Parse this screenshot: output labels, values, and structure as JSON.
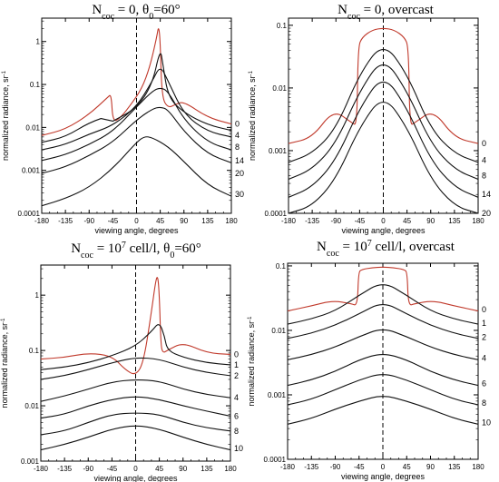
{
  "chart_data": [
    {
      "type": "line",
      "title_parts": [
        "N",
        "coc",
        " = 0, θ",
        "0",
        "=60°"
      ],
      "xlabel": "viewing angle, degrees",
      "ylabel": "normalized radiance, sr",
      "ylabel_sup": "-1",
      "x_ticks": [
        "-180",
        "-135",
        "-90",
        "-45",
        "0",
        "45",
        "90",
        "135",
        "180"
      ],
      "y_ticks": [
        "0.0001",
        "0.001",
        "0.01",
        "0.1",
        "1"
      ],
      "ylim": [
        0.0001,
        3.5
      ],
      "xlim": [
        -180,
        180
      ],
      "log_y": true,
      "series": [
        {
          "name": "0",
          "color": "#c0392b",
          "x": [
            -180,
            -135,
            -90,
            -55,
            -48,
            -45,
            -30,
            -10,
            10,
            25,
            38,
            42,
            45,
            48,
            60,
            75,
            90,
            135,
            180
          ],
          "y": [
            0.0065,
            0.009,
            0.02,
            0.05,
            0.06,
            0.013,
            0.017,
            0.035,
            0.08,
            0.25,
            1.2,
            2.4,
            1.0,
            0.05,
            0.028,
            0.035,
            0.04,
            0.017,
            0.012
          ]
        },
        {
          "name": "4",
          "color": "#111111",
          "x": [
            -180,
            -135,
            -90,
            -45,
            -45,
            0,
            30,
            45,
            50,
            60,
            90,
            135,
            180
          ],
          "y": [
            0.0045,
            0.006,
            0.013,
            0.02,
            0.014,
            0.028,
            0.1,
            0.7,
            0.3,
            0.05,
            0.022,
            0.0115,
            0.0085
          ]
        },
        {
          "name": "8",
          "color": "#111111",
          "x": [
            -180,
            -135,
            -90,
            -45,
            0,
            30,
            45,
            60,
            90,
            135,
            180
          ],
          "y": [
            0.003,
            0.004,
            0.007,
            0.011,
            0.03,
            0.12,
            0.28,
            0.12,
            0.02,
            0.008,
            0.006
          ]
        },
        {
          "name": "14",
          "color": "#111111",
          "x": [
            -180,
            -135,
            -90,
            -45,
            0,
            30,
            45,
            60,
            90,
            135,
            180
          ],
          "y": [
            0.0017,
            0.0023,
            0.004,
            0.008,
            0.03,
            0.07,
            0.085,
            0.07,
            0.015,
            0.0045,
            0.003
          ]
        },
        {
          "name": "20",
          "color": "#111111",
          "x": [
            -180,
            -135,
            -90,
            -45,
            0,
            30,
            45,
            60,
            90,
            135,
            180
          ],
          "y": [
            0.00085,
            0.0012,
            0.0022,
            0.0045,
            0.015,
            0.027,
            0.03,
            0.026,
            0.008,
            0.0024,
            0.0015
          ]
        },
        {
          "name": "30",
          "color": "#111111",
          "x": [
            -180,
            -135,
            -90,
            -45,
            0,
            15,
            30,
            60,
            90,
            135,
            180
          ],
          "y": [
            0.00015,
            0.00022,
            0.0004,
            0.0011,
            0.0045,
            0.0062,
            0.0058,
            0.0036,
            0.0016,
            0.00045,
            0.00025
          ]
        }
      ],
      "label_x": 180,
      "label_y": [
        0.012,
        0.0065,
        0.0035,
        0.0017,
        0.00085,
        0.00028
      ]
    },
    {
      "type": "line",
      "title_parts": [
        "N",
        "coc",
        " = 0, overcast",
        "",
        ""
      ],
      "xlabel": "viewing angle, degrees",
      "ylabel": "normalized radiance, sr",
      "ylabel_sup": "-1",
      "x_ticks": [
        "-180",
        "-135",
        "-90",
        "-45",
        "0",
        "45",
        "90",
        "135",
        "180"
      ],
      "y_ticks": [
        "0.0001",
        "0.001",
        "0.01",
        "0.1"
      ],
      "ylim": [
        0.0001,
        0.13
      ],
      "xlim": [
        -180,
        180
      ],
      "log_y": true,
      "series": [
        {
          "name": "0",
          "color": "#c0392b",
          "x": [
            -180,
            -135,
            -95,
            -60,
            -50,
            -48,
            -40,
            -20,
            0,
            20,
            40,
            48,
            50,
            60,
            95,
            135,
            180
          ],
          "y": [
            0.0013,
            0.0016,
            0.0045,
            0.0028,
            0.0025,
            0.045,
            0.065,
            0.085,
            0.09,
            0.085,
            0.065,
            0.045,
            0.0025,
            0.0028,
            0.0045,
            0.0016,
            0.0013
          ]
        },
        {
          "name": "4",
          "color": "#111111",
          "x": [
            -180,
            -135,
            -90,
            -45,
            0,
            45,
            90,
            135,
            180
          ],
          "y": [
            0.00065,
            0.0009,
            0.0022,
            0.017,
            0.055,
            0.017,
            0.0022,
            0.0009,
            0.00065
          ]
        },
        {
          "name": "8",
          "color": "#111111",
          "x": [
            -180,
            -135,
            -90,
            -45,
            0,
            45,
            90,
            135,
            180
          ],
          "y": [
            0.00035,
            0.0005,
            0.0013,
            0.009,
            0.032,
            0.009,
            0.0013,
            0.0005,
            0.00035
          ]
        },
        {
          "name": "14",
          "color": "#111111",
          "x": [
            -180,
            -135,
            -90,
            -45,
            0,
            45,
            90,
            135,
            180
          ],
          "y": [
            0.00018,
            0.00026,
            0.0007,
            0.0048,
            0.017,
            0.0048,
            0.0007,
            0.00026,
            0.00018
          ]
        },
        {
          "name": "20",
          "color": "#111111",
          "x": [
            -180,
            -135,
            -90,
            -45,
            0,
            45,
            90,
            135,
            180
          ],
          "y": [
            0.0001,
            0.00013,
            0.00035,
            0.0024,
            0.008,
            0.0024,
            0.00035,
            0.00013,
            0.0001
          ]
        }
      ],
      "label_x": 180,
      "label_y": [
        0.0013,
        0.0007,
        0.0004,
        0.0002,
        0.0001
      ]
    },
    {
      "type": "line",
      "title_parts": [
        "N",
        "coc",
        " = 10",
        "7",
        " cell/l, θ",
        "0",
        "=60°"
      ],
      "xlabel": "viewing angle, degrees",
      "ylabel": "normalized radiance, sr",
      "ylabel_sup": "-1",
      "x_ticks": [
        "-180",
        "-135",
        "-90",
        "-45",
        "0",
        "45",
        "90",
        "135",
        "180"
      ],
      "y_ticks": [
        "0.001",
        "0.01",
        "0.1",
        "1"
      ],
      "ylim": [
        0.001,
        3.5
      ],
      "xlim": [
        -180,
        180
      ],
      "log_y": true,
      "series": [
        {
          "name": "0",
          "color": "#c0392b",
          "x": [
            -180,
            -135,
            -90,
            -45,
            -20,
            0,
            15,
            30,
            38,
            42,
            45,
            48,
            52,
            60,
            90,
            135,
            180
          ],
          "y": [
            0.07,
            0.075,
            0.09,
            0.08,
            0.045,
            0.035,
            0.06,
            0.5,
            1.8,
            2.3,
            1.0,
            0.12,
            0.09,
            0.1,
            0.14,
            0.09,
            0.085
          ]
        },
        {
          "name": "1",
          "color": "#111111",
          "x": [
            -180,
            -135,
            -90,
            -45,
            0,
            30,
            45,
            55,
            60,
            90,
            135,
            180
          ],
          "y": [
            0.045,
            0.05,
            0.06,
            0.08,
            0.12,
            0.22,
            0.33,
            0.18,
            0.1,
            0.075,
            0.06,
            0.055
          ]
        },
        {
          "name": "2",
          "color": "#111111",
          "x": [
            -180,
            -135,
            -90,
            -45,
            0,
            45,
            90,
            135,
            180
          ],
          "y": [
            0.03,
            0.035,
            0.045,
            0.06,
            0.075,
            0.07,
            0.05,
            0.04,
            0.035
          ]
        },
        {
          "name": "4",
          "color": "#111111",
          "x": [
            -180,
            -135,
            -90,
            -45,
            0,
            45,
            90,
            135,
            180
          ],
          "y": [
            0.012,
            0.015,
            0.02,
            0.027,
            0.03,
            0.028,
            0.02,
            0.016,
            0.014
          ]
        },
        {
          "name": "6",
          "color": "#111111",
          "x": [
            -180,
            -135,
            -90,
            -45,
            0,
            45,
            90,
            135,
            180
          ],
          "y": [
            0.006,
            0.007,
            0.01,
            0.013,
            0.015,
            0.013,
            0.01,
            0.008,
            0.0065
          ]
        },
        {
          "name": "8",
          "color": "#111111",
          "x": [
            -180,
            -135,
            -90,
            -45,
            0,
            45,
            90,
            135,
            180
          ],
          "y": [
            0.003,
            0.0035,
            0.005,
            0.007,
            0.0075,
            0.007,
            0.005,
            0.004,
            0.0035
          ]
        },
        {
          "name": "10",
          "color": "#111111",
          "x": [
            -180,
            -135,
            -90,
            -45,
            0,
            45,
            90,
            135,
            180
          ],
          "y": [
            0.0016,
            0.002,
            0.0027,
            0.0038,
            0.0045,
            0.0038,
            0.0027,
            0.002,
            0.0016
          ]
        }
      ],
      "label_x": 180,
      "label_y": [
        0.085,
        0.055,
        0.035,
        0.014,
        0.0065,
        0.0035,
        0.0017
      ]
    },
    {
      "type": "line",
      "title_parts": [
        "N",
        "coc",
        " = 10",
        "7",
        " cell/l, overcast",
        "",
        ""
      ],
      "xlabel": "viewing angle, degrees",
      "ylabel": "normalized radiance, sr",
      "ylabel_sup": "-1",
      "x_ticks": [
        "-180",
        "-135",
        "-90",
        "-45",
        "0",
        "45",
        "90",
        "135",
        "180"
      ],
      "y_ticks": [
        "0.0001",
        "0.001",
        "0.01",
        "0.1"
      ],
      "ylim": [
        0.0001,
        0.11
      ],
      "xlim": [
        -180,
        180
      ],
      "log_y": true,
      "series": [
        {
          "name": "0",
          "color": "#c0392b",
          "x": [
            -180,
            -135,
            -95,
            -60,
            -48,
            -46,
            -40,
            -20,
            0,
            20,
            40,
            46,
            48,
            60,
            95,
            135,
            180
          ],
          "y": [
            0.02,
            0.024,
            0.029,
            0.026,
            0.024,
            0.08,
            0.088,
            0.094,
            0.096,
            0.094,
            0.088,
            0.08,
            0.024,
            0.026,
            0.029,
            0.024,
            0.02
          ]
        },
        {
          "name": "1",
          "color": "#111111",
          "x": [
            -180,
            -135,
            -90,
            -45,
            0,
            45,
            90,
            135,
            180
          ],
          "y": [
            0.0125,
            0.015,
            0.02,
            0.035,
            0.058,
            0.035,
            0.02,
            0.015,
            0.0125
          ]
        },
        {
          "name": "2",
          "color": "#111111",
          "x": [
            -180,
            -135,
            -90,
            -45,
            0,
            45,
            90,
            135,
            180
          ],
          "y": [
            0.0075,
            0.009,
            0.012,
            0.018,
            0.028,
            0.018,
            0.012,
            0.009,
            0.0075
          ]
        },
        {
          "name": "4",
          "color": "#111111",
          "x": [
            -180,
            -135,
            -90,
            -45,
            0,
            45,
            90,
            135,
            180
          ],
          "y": [
            0.0035,
            0.0042,
            0.0055,
            0.008,
            0.011,
            0.008,
            0.0055,
            0.0042,
            0.0035
          ]
        },
        {
          "name": "6",
          "color": "#111111",
          "x": [
            -180,
            -135,
            -90,
            -45,
            0,
            45,
            90,
            135,
            180
          ],
          "y": [
            0.0014,
            0.0017,
            0.0023,
            0.0035,
            0.0045,
            0.0035,
            0.0023,
            0.0017,
            0.0014
          ]
        },
        {
          "name": "8",
          "color": "#111111",
          "x": [
            -180,
            -135,
            -90,
            -45,
            0,
            45,
            90,
            135,
            180
          ],
          "y": [
            0.0007,
            0.00085,
            0.0012,
            0.0017,
            0.0022,
            0.0017,
            0.0012,
            0.00085,
            0.0007
          ]
        },
        {
          "name": "10",
          "color": "#111111",
          "x": [
            -180,
            -135,
            -90,
            -45,
            0,
            45,
            90,
            135,
            180
          ],
          "y": [
            0.00035,
            0.00043,
            0.0006,
            0.0008,
            0.001,
            0.0008,
            0.0006,
            0.00043,
            0.00035
          ]
        }
      ],
      "label_x": 180,
      "label_y": [
        0.021,
        0.013,
        0.0078,
        0.0037,
        0.0015,
        0.00075,
        0.00037
      ]
    }
  ]
}
